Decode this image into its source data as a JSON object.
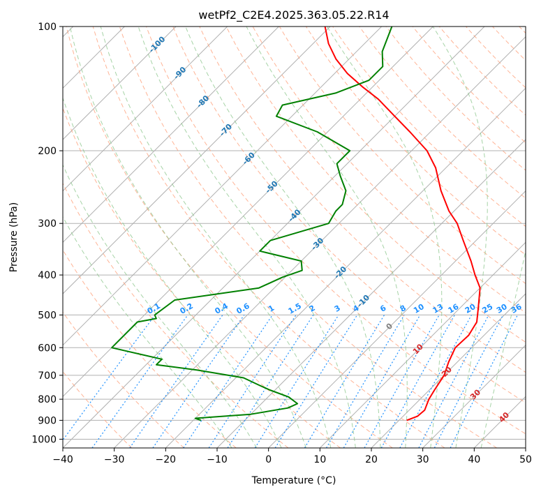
{
  "chart_data": {
    "type": "line",
    "diagram": "skew-t",
    "title": "wetPf2_C2E4.2025.363.05.22.R14",
    "xlabel": "Temperature (°C)",
    "ylabel": "Pressure (hPa)",
    "xlim": [
      -40,
      50
    ],
    "ylim": [
      1050,
      100
    ],
    "y_scale": "log",
    "grid": true,
    "x_ticks": [
      -40,
      -30,
      -20,
      -10,
      0,
      10,
      20,
      30,
      40,
      50
    ],
    "y_ticks": [
      100,
      200,
      300,
      400,
      500,
      600,
      700,
      800,
      900,
      1000
    ],
    "isotherm_labels": [
      -100,
      -90,
      -80,
      -70,
      -60,
      -50,
      -40,
      -30,
      -20,
      -10,
      0,
      10,
      20,
      30,
      40
    ],
    "mixing_ratio_labels": [
      "0.1",
      "0.2",
      "0.4",
      "0.6",
      "1",
      "1.5",
      "2",
      "3",
      "4",
      "6",
      "8",
      "10",
      "13",
      "16",
      "20",
      "25",
      "30",
      "36"
    ],
    "colors": {
      "temperature": "#ff0000",
      "dewpoint": "#008000",
      "isotherm_label_cold": "#1f77b4",
      "isotherm_label_zero": "#808080",
      "isotherm_label_warm": "#d62728",
      "mixing_ratio": "#1e90ff",
      "dry_adiabat": "#ffa07a",
      "moist_adiabat": "#90c890",
      "grid": "#b0b0b0"
    },
    "series": [
      {
        "key": "temperature",
        "color": "#ff0000",
        "points": [
          [
            900,
            21.5
          ],
          [
            880,
            22.8
          ],
          [
            850,
            23.0
          ],
          [
            800,
            21.7
          ],
          [
            760,
            21.0
          ],
          [
            700,
            20.0
          ],
          [
            650,
            18.3
          ],
          [
            600,
            16.8
          ],
          [
            560,
            17.0
          ],
          [
            520,
            16.0
          ],
          [
            480,
            13.5
          ],
          [
            430,
            10.0
          ],
          [
            400,
            6.5
          ],
          [
            370,
            3.0
          ],
          [
            330,
            -2.5
          ],
          [
            300,
            -7.0
          ],
          [
            280,
            -11.0
          ],
          [
            250,
            -16.5
          ],
          [
            220,
            -22.0
          ],
          [
            200,
            -27.0
          ],
          [
            180,
            -34.0
          ],
          [
            165,
            -40.0
          ],
          [
            150,
            -46.5
          ],
          [
            140,
            -52.0
          ],
          [
            130,
            -57.5
          ],
          [
            120,
            -62.5
          ],
          [
            110,
            -67.0
          ],
          [
            100,
            -71.0
          ]
        ]
      },
      {
        "key": "dewpoint",
        "color": "#008000",
        "points": [
          [
            900,
            -18.5
          ],
          [
            890,
            -20.0
          ],
          [
            870,
            -10.0
          ],
          [
            840,
            -4.0
          ],
          [
            820,
            -3.0
          ],
          [
            790,
            -6.0
          ],
          [
            760,
            -11.0
          ],
          [
            740,
            -14.0
          ],
          [
            710,
            -18.5
          ],
          [
            680,
            -29.0
          ],
          [
            660,
            -38.0
          ],
          [
            640,
            -38.0
          ],
          [
            600,
            -50.0
          ],
          [
            520,
            -50.0
          ],
          [
            510,
            -47.0
          ],
          [
            500,
            -48.0
          ],
          [
            460,
            -47.0
          ],
          [
            430,
            -33.0
          ],
          [
            405,
            -30.5
          ],
          [
            390,
            -28.0
          ],
          [
            370,
            -30.0
          ],
          [
            350,
            -40.0
          ],
          [
            330,
            -40.0
          ],
          [
            300,
            -32.0
          ],
          [
            280,
            -33.0
          ],
          [
            270,
            -33.0
          ],
          [
            250,
            -35.0
          ],
          [
            230,
            -39.0
          ],
          [
            215,
            -42.0
          ],
          [
            200,
            -42.0
          ],
          [
            180,
            -52.0
          ],
          [
            165,
            -63.0
          ],
          [
            155,
            -64.0
          ],
          [
            145,
            -56.0
          ],
          [
            135,
            -52.0
          ],
          [
            125,
            -52.0
          ],
          [
            115,
            -55.0
          ],
          [
            100,
            -58.0
          ]
        ]
      }
    ]
  }
}
